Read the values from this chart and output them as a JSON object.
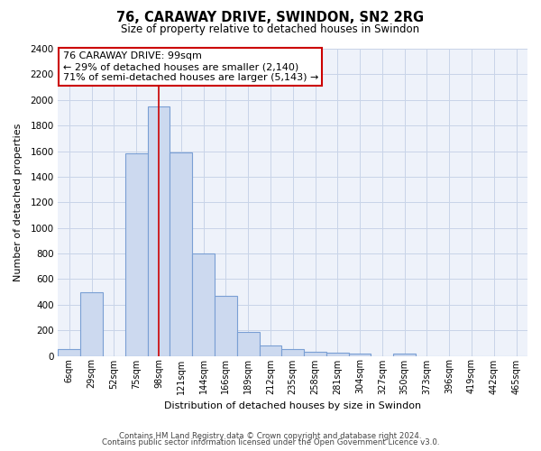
{
  "title": "76, CARAWAY DRIVE, SWINDON, SN2 2RG",
  "subtitle": "Size of property relative to detached houses in Swindon",
  "xlabel": "Distribution of detached houses by size in Swindon",
  "ylabel": "Number of detached properties",
  "bar_color": "#ccd9ef",
  "bar_edge_color": "#7a9fd4",
  "plot_bg_color": "#eef2fa",
  "categories": [
    "6sqm",
    "29sqm",
    "52sqm",
    "75sqm",
    "98sqm",
    "121sqm",
    "144sqm",
    "166sqm",
    "189sqm",
    "212sqm",
    "235sqm",
    "258sqm",
    "281sqm",
    "304sqm",
    "327sqm",
    "350sqm",
    "373sqm",
    "396sqm",
    "419sqm",
    "442sqm",
    "465sqm"
  ],
  "values": [
    55,
    500,
    0,
    1580,
    1950,
    1590,
    800,
    470,
    185,
    80,
    50,
    30,
    25,
    20,
    0,
    20,
    0,
    0,
    0,
    0,
    0
  ],
  "ylim": [
    0,
    2400
  ],
  "yticks": [
    0,
    200,
    400,
    600,
    800,
    1000,
    1200,
    1400,
    1600,
    1800,
    2000,
    2200,
    2400
  ],
  "annotation_line1": "76 CARAWAY DRIVE: 99sqm",
  "annotation_line2": "← 29% of detached houses are smaller (2,140)",
  "annotation_line3": "71% of semi-detached houses are larger (5,143) →",
  "annotation_box_color": "#ffffff",
  "annotation_box_edge_color": "#cc0000",
  "vline_color": "#cc0000",
  "vline_x_index": 4,
  "footnote1": "Contains HM Land Registry data © Crown copyright and database right 2024.",
  "footnote2": "Contains public sector information licensed under the Open Government Licence v3.0.",
  "background_color": "#ffffff",
  "grid_color": "#c8d4e8"
}
